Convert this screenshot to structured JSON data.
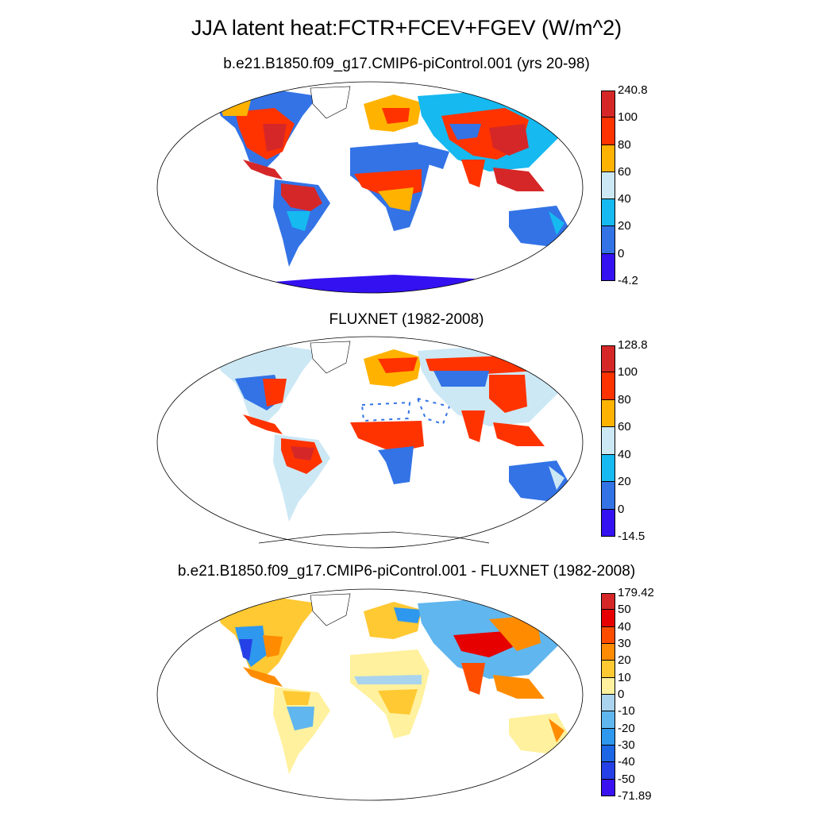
{
  "title": "JJA latent heat:FCTR+FCEV+FGEV (W/m^2)",
  "panels": [
    {
      "id": "model",
      "subtitle": "b.e21.B1850.f09_g17.CMIP6-piControl.001 (yrs 20-98)",
      "colorbar": {
        "labels": [
          "240.8",
          "100",
          "80",
          "60",
          "40",
          "20",
          "0",
          "-4.2"
        ],
        "colors": [
          "#d62728",
          "#ff3300",
          "#ffb300",
          "#cce8f5",
          "#16b9f0",
          "#3373e6",
          "#3311f0"
        ]
      }
    },
    {
      "id": "obs",
      "subtitle": "FLUXNET (1982-2008)",
      "colorbar": {
        "labels": [
          "128.8",
          "100",
          "80",
          "60",
          "40",
          "20",
          "0",
          "-14.5"
        ],
        "colors": [
          "#d62728",
          "#ff3300",
          "#ffb300",
          "#cce8f5",
          "#16b9f0",
          "#3373e6",
          "#3311f0"
        ]
      }
    },
    {
      "id": "diff",
      "subtitle": "b.e21.B1850.f09_g17.CMIP6-piControl.001 - FLUXNET (1982-2008)",
      "colorbar": {
        "labels": [
          "179.42",
          "50",
          "40",
          "30",
          "20",
          "10",
          "0",
          "-10",
          "-20",
          "-30",
          "-40",
          "-50",
          "-71.89"
        ],
        "colors": [
          "#d62728",
          "#e60000",
          "#ff4d00",
          "#ff8c00",
          "#ffc933",
          "#fff19e",
          "#aad4ee",
          "#60b6ee",
          "#2e97ee",
          "#1d66e6",
          "#2540e6",
          "#3a11f0"
        ]
      }
    }
  ]
}
